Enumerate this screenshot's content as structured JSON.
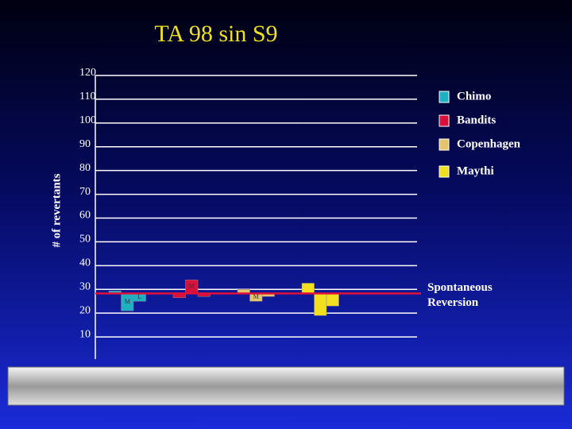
{
  "chart_data": {
    "type": "floating-bar",
    "title": "TA 98 sin S9",
    "y_label": "# of revertants",
    "categories": [
      null,
      null,
      null
    ],
    "baseline": 28.3,
    "baseline_label": "Spontaneous Reversion",
    "baseline_color": "#e0103a",
    "series": [
      {
        "name": "Chimo",
        "color": "#1fb0c4",
        "values": [
          29.3,
          21,
          25
        ],
        "bar_labels": [
          null,
          "M",
          "L"
        ]
      },
      {
        "name": "Bandits",
        "color": "#d8103c",
        "values": [
          26.5,
          34,
          27
        ],
        "bar_labels": [
          null,
          "M",
          null
        ]
      },
      {
        "name": "Copenhagen",
        "color": "#e6c46c",
        "values": [
          30,
          25,
          27
        ],
        "bar_labels": [
          null,
          "M",
          null
        ]
      },
      {
        "name": "Maythi",
        "color": "#f2e020",
        "values": [
          32.6,
          19,
          23
        ],
        "bar_labels": [
          null,
          null,
          null
        ]
      }
    ],
    "ylim": [
      0,
      120
    ],
    "yticks": [
      10,
      20,
      30,
      40,
      50,
      60,
      70,
      80,
      90,
      100,
      110,
      120
    ],
    "grid": true
  }
}
